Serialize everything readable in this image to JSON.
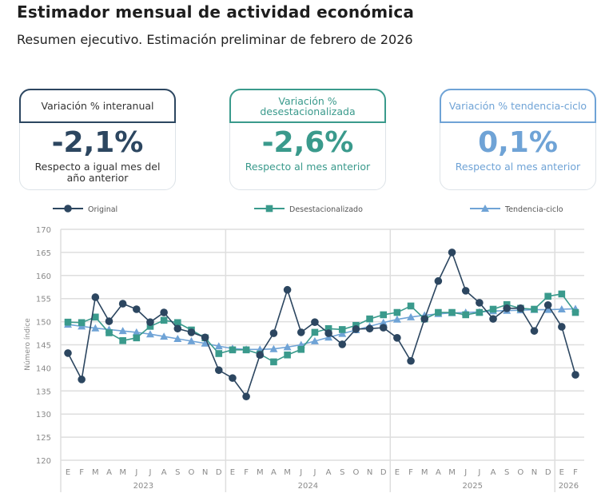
{
  "header": {
    "title": "Estimador mensual de actividad económica",
    "subtitle": "Resumen ejecutivo. Estimación preliminar de febrero de 2026"
  },
  "colors": {
    "original": "#2c4660",
    "desestacionalizado": "#3a9a8c",
    "tendencia": "#6fa3d6",
    "grid": "#dedede",
    "axis_text": "#8a8a8a"
  },
  "cards": [
    {
      "label": "Variación % interanual",
      "value": "-2,1%",
      "description": "Respecto a igual mes del año anterior",
      "color": "#2c4660"
    },
    {
      "label": "Variación % desestacionalizada",
      "value": "-2,6%",
      "description": "Respecto al mes anterior",
      "color": "#3a9a8c"
    },
    {
      "label": "Variación % tendencia-ciclo",
      "value": "0,1%",
      "description": "Respecto al mes anterior",
      "color": "#6fa3d6"
    }
  ],
  "chart_data": {
    "type": "line",
    "ylabel": "Número índice",
    "ylim": [
      120,
      170
    ],
    "yticks": [
      120,
      125,
      130,
      135,
      140,
      145,
      150,
      155,
      160,
      165,
      170
    ],
    "grid": true,
    "legend_position": "top",
    "x": [
      "E",
      "F",
      "M",
      "A",
      "M",
      "J",
      "J",
      "A",
      "S",
      "O",
      "N",
      "D",
      "E",
      "F",
      "M",
      "A",
      "M",
      "J",
      "J",
      "A",
      "S",
      "O",
      "N",
      "D",
      "E",
      "F",
      "M",
      "A",
      "M",
      "J",
      "J",
      "A",
      "S",
      "O",
      "N",
      "D",
      "E",
      "F"
    ],
    "years": [
      {
        "label": "2023",
        "months": 12
      },
      {
        "label": "2024",
        "months": 12
      },
      {
        "label": "2025",
        "months": 12
      },
      {
        "label": "2026",
        "months": 2
      }
    ],
    "series": [
      {
        "name": "Original",
        "marker": "circle",
        "color": "#2c4660",
        "values": [
          143.2,
          137.5,
          155.3,
          150.1,
          153.9,
          152.7,
          149.9,
          152.0,
          148.5,
          147.7,
          146.6,
          139.5,
          137.8,
          133.8,
          142.8,
          147.5,
          156.9,
          147.7,
          149.9,
          147.5,
          145.1,
          148.4,
          148.5,
          148.7,
          146.5,
          141.5,
          150.6,
          158.8,
          165.0,
          156.7,
          154.1,
          150.6,
          152.9,
          152.9,
          148.0,
          153.6,
          148.9,
          138.5
        ]
      },
      {
        "name": "Desestacionalizado",
        "marker": "square",
        "color": "#3a9a8c",
        "values": [
          149.9,
          149.8,
          151.0,
          147.6,
          145.9,
          146.5,
          149.0,
          150.3,
          149.8,
          148.2,
          146.5,
          143.1,
          143.9,
          143.9,
          143.0,
          141.3,
          142.8,
          144.0,
          147.7,
          148.5,
          148.3,
          149.2,
          150.6,
          151.5,
          152.0,
          153.4,
          150.6,
          152.0,
          152.0,
          151.5,
          152.0,
          152.7,
          153.7,
          152.9,
          152.7,
          155.5,
          156.0,
          152.0
        ]
      },
      {
        "name": "Tendencia-ciclo",
        "marker": "triangle",
        "color": "#6fa3d6",
        "values": [
          149.4,
          149.0,
          148.6,
          148.3,
          148.0,
          147.7,
          147.3,
          146.8,
          146.3,
          145.8,
          145.3,
          144.7,
          144.2,
          144.0,
          144.0,
          144.1,
          144.5,
          145.0,
          145.8,
          146.6,
          147.4,
          148.2,
          149.0,
          149.8,
          150.5,
          151.0,
          151.4,
          151.7,
          151.9,
          152.0,
          152.1,
          152.3,
          152.4,
          152.5,
          152.6,
          152.6,
          152.7,
          152.8
        ]
      }
    ]
  }
}
